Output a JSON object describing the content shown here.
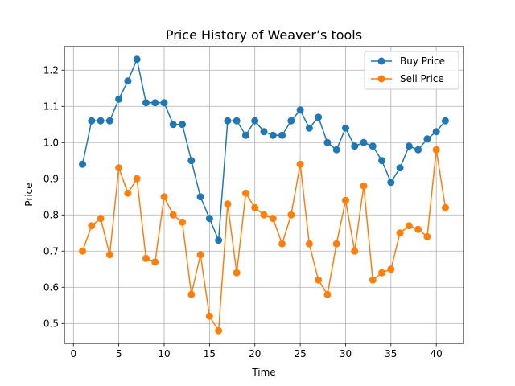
{
  "chart_data": {
    "type": "line",
    "title": "Price History of Weaver’s tools",
    "xlabel": "Time",
    "ylabel": "Price",
    "xlim": [
      -1,
      43
    ],
    "ylim": [
      0.445,
      1.265
    ],
    "xticks": [
      0,
      5,
      10,
      15,
      20,
      25,
      30,
      35,
      40
    ],
    "yticks": [
      0.5,
      0.6,
      0.7,
      0.8,
      0.9,
      1.0,
      1.1,
      1.2
    ],
    "ytick_labels": [
      "0.5",
      "0.6",
      "0.7",
      "0.8",
      "0.9",
      "1.0",
      "1.1",
      "1.2"
    ],
    "grid": true,
    "legend_position": "top-right",
    "x": [
      1,
      2,
      3,
      4,
      5,
      6,
      7,
      8,
      9,
      10,
      11,
      12,
      13,
      14,
      15,
      16,
      17,
      18,
      19,
      20,
      21,
      22,
      23,
      24,
      25,
      26,
      27,
      28,
      29,
      30,
      31,
      32,
      33,
      34,
      35,
      36,
      37,
      38,
      39,
      40,
      41
    ],
    "series": [
      {
        "name": "Buy Price",
        "color": "#1f77b4",
        "values": [
          0.94,
          1.06,
          1.06,
          1.06,
          1.12,
          1.17,
          1.23,
          1.11,
          1.11,
          1.11,
          1.05,
          1.05,
          0.95,
          0.85,
          0.79,
          0.73,
          1.06,
          1.06,
          1.02,
          1.06,
          1.03,
          1.02,
          1.02,
          1.06,
          1.09,
          1.04,
          1.07,
          1.0,
          0.98,
          1.04,
          0.99,
          1.0,
          0.99,
          0.95,
          0.89,
          0.93,
          0.99,
          0.98,
          1.01,
          1.03,
          1.06
        ]
      },
      {
        "name": "Sell Price",
        "color": "#ff7f0e",
        "values": [
          0.7,
          0.77,
          0.79,
          0.69,
          0.93,
          0.86,
          0.9,
          0.68,
          0.67,
          0.85,
          0.8,
          0.78,
          0.58,
          0.69,
          0.52,
          0.48,
          0.83,
          0.64,
          0.86,
          0.82,
          0.8,
          0.79,
          0.72,
          0.8,
          0.94,
          0.72,
          0.62,
          0.58,
          0.72,
          0.84,
          0.7,
          0.88,
          0.62,
          0.64,
          0.65,
          0.75,
          0.77,
          0.76,
          0.74,
          0.98,
          0.82
        ]
      }
    ]
  }
}
